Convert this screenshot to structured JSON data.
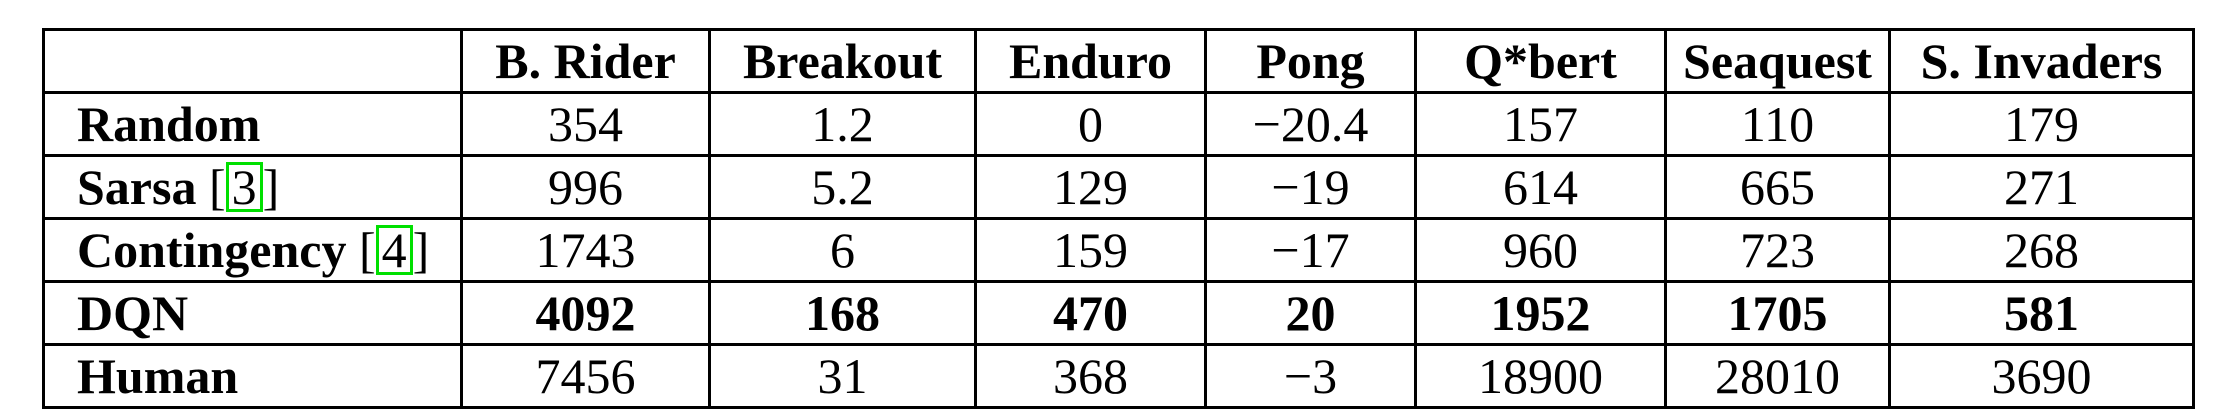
{
  "table": {
    "columns": [
      "",
      "B. Rider",
      "Breakout",
      "Enduro",
      "Pong",
      "Q*bert",
      "Seaquest",
      "S. Invaders"
    ],
    "rows": [
      {
        "label": "Random",
        "cite": "",
        "values": [
          "354",
          "1.2",
          "0",
          "−20.4",
          "157",
          "110",
          "179"
        ],
        "bold": false
      },
      {
        "label": "Sarsa",
        "cite": "3",
        "values": [
          "996",
          "5.2",
          "129",
          "−19",
          "614",
          "665",
          "271"
        ],
        "bold": false
      },
      {
        "label": "Contingency",
        "cite": "4",
        "values": [
          "1743",
          "6",
          "159",
          "−17",
          "960",
          "723",
          "268"
        ],
        "bold": false
      },
      {
        "label": "DQN",
        "cite": "",
        "values": [
          "4092",
          "168",
          "470",
          "20",
          "1952",
          "1705",
          "581"
        ],
        "bold": true
      },
      {
        "label": "Human",
        "cite": "",
        "values": [
          "7456",
          "31",
          "368",
          "−3",
          "18900",
          "28010",
          "3690"
        ],
        "bold": false
      }
    ]
  },
  "colors": {
    "citation_box": "#00e000",
    "border": "#000000"
  }
}
